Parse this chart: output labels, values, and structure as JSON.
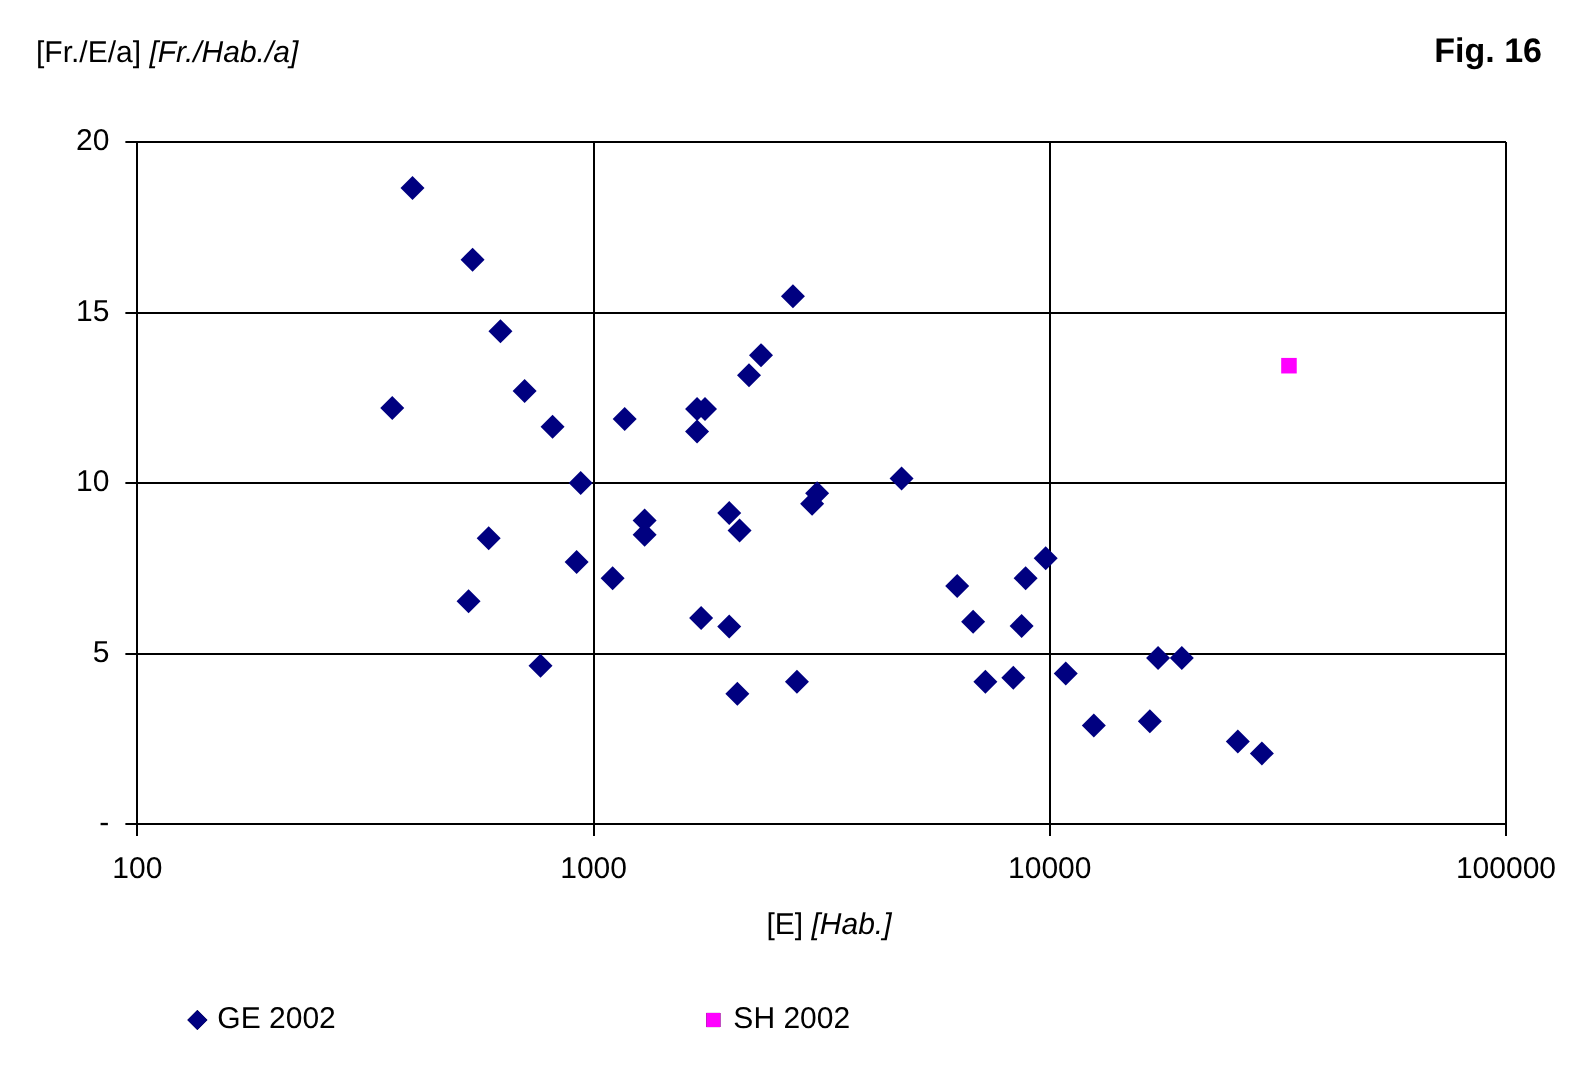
{
  "chart_data": {
    "type": "scatter",
    "title": "Fig. 16",
    "ylabel": "[Fr./E/a] [Fr./Hab./a]",
    "xlabel": "[E] [Hab.]",
    "log": "x",
    "xlim": [
      100,
      100000
    ],
    "xticks": [
      100,
      1000,
      10000,
      100000
    ],
    "ylim": [
      0,
      20
    ],
    "yticks": [
      {
        "value": 0,
        "label": "-"
      },
      5,
      10,
      15,
      20
    ],
    "grid": true,
    "legend": "bottom",
    "series": [
      {
        "name": "GE 2002",
        "color": "#000080",
        "marker": "diamond",
        "x": [
          401,
          543,
          625,
          706,
          362,
          813,
          1170,
          937,
          1294,
          1294,
          589,
          918,
          1101,
          532,
          1721,
          765,
          2735,
          2328,
          2191,
          1686,
          1755,
          1686,
          4732,
          3090,
          3013,
          1983,
          2089,
          1983,
          2066,
          2791,
          6266,
          6792,
          8851,
          9795,
          8675,
          7224,
          8318,
          10840,
          12490,
          16570,
          17270,
          19470,
          25830,
          29170
        ],
        "values": [
          18.65,
          16.55,
          14.45,
          12.7,
          12.2,
          11.65,
          11.88,
          10.0,
          8.9,
          8.48,
          8.38,
          7.68,
          7.21,
          6.53,
          6.04,
          4.64,
          15.48,
          13.75,
          13.16,
          12.17,
          12.17,
          11.51,
          10.13,
          9.7,
          9.39,
          9.12,
          8.61,
          5.79,
          3.82,
          4.17,
          6.98,
          5.93,
          7.21,
          7.79,
          5.81,
          4.17,
          4.29,
          4.41,
          2.89,
          3.01,
          4.87,
          4.87,
          2.42,
          2.07
        ]
      },
      {
        "name": "SH 2002",
        "color": "#ff00ff",
        "marker": "square",
        "x": [
          33440
        ],
        "values": [
          13.44
        ]
      }
    ]
  }
}
